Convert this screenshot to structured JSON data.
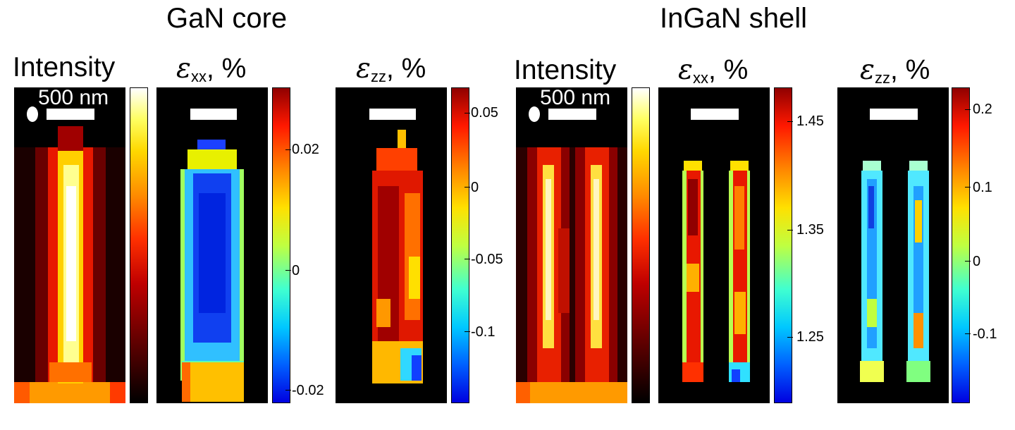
{
  "sections": {
    "gan_core": "GaN core",
    "ingan_shell": "InGaN shell"
  },
  "labels": {
    "intensity": "Intensity",
    "epsilon": "ε",
    "xx": "xx",
    "zz": "zz",
    "percent_suffix": ", %"
  },
  "scale_bar_text": "500 nm",
  "colorbars": {
    "core_xx": [
      "0.02",
      "0",
      "-0.02"
    ],
    "core_zz": [
      "0.05",
      "0",
      "-0.05",
      "-0.1"
    ],
    "shell_xx": [
      "1.45",
      "1.35",
      "1.25"
    ],
    "shell_zz": [
      "0.2",
      "0.1",
      "0",
      "-0.1"
    ]
  },
  "colormaps": {
    "intensity": "hot",
    "strain": "jet"
  }
}
